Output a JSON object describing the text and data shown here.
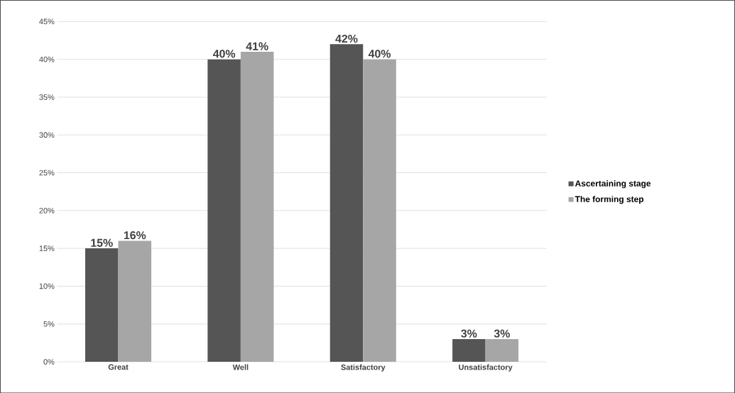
{
  "chart_data": {
    "type": "bar",
    "categories": [
      "Great",
      "Well",
      "Satisfactory",
      "Unsatisfactory"
    ],
    "series": [
      {
        "name": "Ascertaining stage",
        "color": "#555555",
        "values": [
          15,
          40,
          42,
          3
        ],
        "value_labels": [
          "15%",
          "40%",
          "42%",
          "3%"
        ]
      },
      {
        "name": "The forming step",
        "color": "#a6a6a6",
        "values": [
          16,
          41,
          40,
          3
        ],
        "value_labels": [
          "16%",
          "41%",
          "40%",
          "3%"
        ]
      }
    ],
    "ylim": [
      0,
      45
    ],
    "yticks": [
      {
        "value": 0,
        "label": "0%"
      },
      {
        "value": 5,
        "label": "5%"
      },
      {
        "value": 10,
        "label": "10%"
      },
      {
        "value": 15,
        "label": "15%"
      },
      {
        "value": 20,
        "label": "20%"
      },
      {
        "value": 25,
        "label": "25%"
      },
      {
        "value": 30,
        "label": "30%"
      },
      {
        "value": 35,
        "label": "35%"
      },
      {
        "value": 40,
        "label": "40%"
      },
      {
        "value": 45,
        "label": "45%"
      }
    ],
    "grid": "y",
    "legend": "right"
  }
}
